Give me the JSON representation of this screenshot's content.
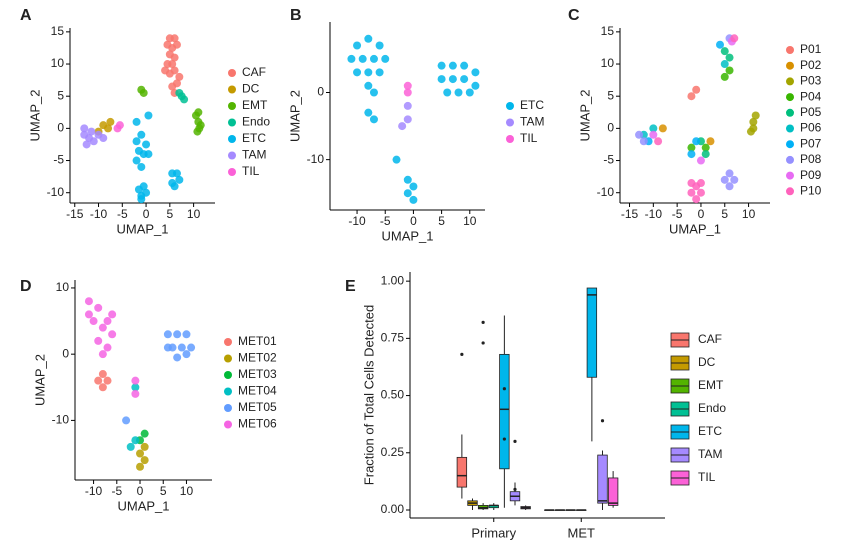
{
  "chart_data": [
    {
      "type": "scatter",
      "panel": "A",
      "xlabel": "UMAP_1",
      "ylabel": "UMAP_2",
      "xlim": [
        -16,
        14.5
      ],
      "ylim": [
        -11.6,
        15.6
      ],
      "xticks": [
        -15,
        -10,
        -5,
        0,
        5,
        10
      ],
      "yticks": [
        -10,
        -5,
        0,
        5,
        10,
        15
      ],
      "series": [
        {
          "name": "CAF",
          "color": "#F8766D",
          "x": [
            5,
            6,
            4.5,
            5.5,
            6.5,
            5,
            6,
            5.5,
            4.5,
            6,
            5,
            7,
            6.5,
            5.5,
            4,
            6
          ],
          "values": [
            14,
            14,
            13,
            12.5,
            13,
            11.5,
            11,
            10,
            10,
            9,
            8.5,
            8,
            7,
            6.5,
            9,
            5.5
          ]
        },
        {
          "name": "DC",
          "color": "#C49A00",
          "x": [
            -9,
            -8,
            -7.5,
            -10
          ],
          "values": [
            0.5,
            0,
            1,
            -0.5
          ]
        },
        {
          "name": "EMT",
          "color": "#53B400",
          "x": [
            -1,
            -0.5,
            10.5,
            11,
            11.5,
            10.8,
            11.2,
            11
          ],
          "values": [
            6,
            5.5,
            2,
            1,
            0.5,
            -0.5,
            0,
            2.5
          ]
        },
        {
          "name": "Endo",
          "color": "#00C094",
          "x": [
            7,
            7.5,
            8
          ],
          "values": [
            5.5,
            5,
            4.5
          ]
        },
        {
          "name": "ETC",
          "color": "#00B6EB",
          "x": [
            -1,
            -2,
            0,
            -1.5,
            -0.5,
            0.5,
            -2,
            -1,
            -0.5,
            -1.5,
            -1,
            0,
            -1,
            5.5,
            6.5,
            7,
            6,
            5.5,
            -2,
            0.5
          ],
          "values": [
            -1,
            -2,
            -2.5,
            -3.5,
            -4,
            -4,
            -5,
            -6,
            -9,
            -9.5,
            -10.5,
            -10,
            -11,
            -7,
            -7,
            -8,
            -9,
            -8.5,
            1,
            2
          ]
        },
        {
          "name": "TAM",
          "color": "#A58AFF",
          "x": [
            -13,
            -12,
            -11,
            -12.5,
            -10,
            -11.5,
            -13,
            -9
          ],
          "values": [
            -1,
            -1.5,
            -2,
            -2.5,
            -1,
            -0.5,
            0,
            -1.5
          ]
        },
        {
          "name": "TIL",
          "color": "#FB61D7",
          "x": [
            -6,
            -5.5
          ],
          "values": [
            0,
            0.5
          ]
        }
      ]
    },
    {
      "type": "scatter",
      "panel": "B",
      "xlabel": "UMAP_1",
      "ylabel": "UMAP_2",
      "xlim": [
        -14.8,
        12.7
      ],
      "ylim": [
        -17.5,
        10.5
      ],
      "xticks": [
        -10,
        -5,
        0,
        5,
        10
      ],
      "yticks": [
        -10,
        0
      ],
      "series": [
        {
          "name": "ETC",
          "color": "#00B6EB",
          "x": [
            -10,
            -8,
            -6,
            -11,
            -9,
            -7,
            -5,
            -10,
            -8,
            -6,
            -8,
            -7,
            -8,
            -7,
            5,
            7,
            9,
            11,
            5,
            7,
            9,
            11,
            6,
            8,
            10,
            -1,
            0,
            -1,
            0,
            -3
          ],
          "values": [
            7,
            8,
            7,
            5,
            5,
            5,
            5,
            3,
            3,
            3,
            1,
            0,
            -3,
            -4,
            4,
            4,
            4,
            3,
            2,
            2,
            2,
            1,
            0,
            0,
            0,
            -13,
            -14,
            -15,
            -16,
            -10
          ]
        },
        {
          "name": "TAM",
          "color": "#A58AFF",
          "x": [
            -1,
            -1,
            -2
          ],
          "values": [
            -2,
            -4,
            -5
          ]
        },
        {
          "name": "TIL",
          "color": "#FB61D7",
          "x": [
            -1,
            -1
          ],
          "values": [
            0,
            1
          ]
        }
      ]
    },
    {
      "type": "scatter",
      "panel": "C",
      "xlabel": "UMAP_1",
      "ylabel": "UMAP_2",
      "xlim": [
        -17,
        14.5
      ],
      "ylim": [
        -11.6,
        15.6
      ],
      "xticks": [
        -15,
        -10,
        -5,
        0,
        5,
        10
      ],
      "yticks": [
        -10,
        -5,
        0,
        5,
        10,
        15
      ],
      "series": [
        {
          "name": "P01",
          "color": "#F8766D",
          "x": [
            -1,
            -2
          ],
          "values": [
            6,
            5
          ]
        },
        {
          "name": "P02",
          "color": "#D89000",
          "x": [
            -8,
            2
          ],
          "values": [
            0,
            -2
          ]
        },
        {
          "name": "P03",
          "color": "#A3A500",
          "x": [
            11,
            11,
            10.5,
            11.5
          ],
          "values": [
            1,
            0,
            -0.5,
            2
          ]
        },
        {
          "name": "P04",
          "color": "#39B600",
          "x": [
            5,
            6,
            -2,
            1
          ],
          "values": [
            8,
            9,
            -3,
            -3
          ]
        },
        {
          "name": "P05",
          "color": "#00BF7D",
          "x": [
            5,
            6,
            0,
            1
          ],
          "values": [
            12,
            11,
            -2,
            -4
          ]
        },
        {
          "name": "P06",
          "color": "#00BFC4",
          "x": [
            -12,
            -10,
            5
          ],
          "values": [
            -1,
            0,
            10
          ]
        },
        {
          "name": "P07",
          "color": "#00B0F6",
          "x": [
            4,
            -11,
            -1,
            -2
          ],
          "values": [
            13,
            -2,
            -2,
            -4
          ]
        },
        {
          "name": "P08",
          "color": "#9590FF",
          "x": [
            6,
            -13,
            -12,
            6,
            7,
            6,
            5
          ],
          "values": [
            14,
            -1,
            -2,
            -7,
            -8,
            -9,
            -8
          ]
        },
        {
          "name": "P09",
          "color": "#E76BF3",
          "x": [
            -10,
            6.5,
            0
          ],
          "values": [
            -1,
            13.5,
            -5
          ]
        },
        {
          "name": "P10",
          "color": "#FF62BC",
          "x": [
            -1,
            -2,
            0,
            -1,
            -2,
            0,
            -9,
            7
          ],
          "values": [
            -9,
            -10,
            -10,
            -11,
            -8.5,
            -8.5,
            -2,
            14
          ]
        }
      ]
    },
    {
      "type": "scatter",
      "panel": "D",
      "xlabel": "UMAP_1",
      "ylabel": "UMAP_2",
      "xlim": [
        -14,
        15.5
      ],
      "ylim": [
        -19,
        11.2
      ],
      "xticks": [
        -10,
        -5,
        0,
        5,
        10
      ],
      "yticks": [
        -10,
        0,
        10
      ],
      "series": [
        {
          "name": "MET01",
          "color": "#F8766D",
          "x": [
            -8,
            -9,
            -8,
            -7
          ],
          "values": [
            -3,
            -4,
            -5,
            -4
          ]
        },
        {
          "name": "MET02",
          "color": "#B79F00",
          "x": [
            0,
            1,
            0,
            1
          ],
          "values": [
            -15,
            -16,
            -17,
            -14
          ]
        },
        {
          "name": "MET03",
          "color": "#00BA38",
          "x": [
            0,
            1
          ],
          "values": [
            -13,
            -12
          ]
        },
        {
          "name": "MET04",
          "color": "#00BFC4",
          "x": [
            -1,
            -2,
            -1
          ],
          "values": [
            -13,
            -14,
            -5
          ]
        },
        {
          "name": "MET05",
          "color": "#619CFF",
          "x": [
            6,
            8,
            10,
            7,
            9,
            11,
            8,
            10,
            6,
            -3
          ],
          "values": [
            3,
            3,
            3,
            1,
            1,
            1,
            -0.5,
            0,
            1,
            -10
          ]
        },
        {
          "name": "MET06",
          "color": "#F564E3",
          "x": [
            -11,
            -9,
            -7,
            -10,
            -8,
            -6,
            -9,
            -7,
            -8,
            -6,
            -11,
            -1,
            -1
          ],
          "values": [
            8,
            7,
            5,
            5,
            4,
            3,
            2,
            1,
            0,
            6,
            6,
            -4,
            -6
          ]
        }
      ]
    },
    {
      "type": "box",
      "panel": "E",
      "ylabel": "Fraction of Total Cells Detected",
      "categories": [
        "Primary",
        "MET"
      ],
      "ylim": [
        -0.035,
        1.04
      ],
      "yticks": [
        {
          "value": 0,
          "label": "0.00"
        },
        {
          "value": 0.25,
          "label": "0.25"
        },
        {
          "value": 0.5,
          "label": "0.50"
        },
        {
          "value": 0.75,
          "label": "0.75"
        },
        {
          "value": 1,
          "label": "1.00"
        }
      ],
      "series": [
        {
          "name": "CAF",
          "color": "#F8766D",
          "values": [
            [
              0.05,
              0.1,
              0.15,
              0.23,
              0.33
            ],
            [
              0,
              0,
              0,
              0,
              0
            ]
          ],
          "outliers": [
            [
              0.68
            ],
            []
          ]
        },
        {
          "name": "DC",
          "color": "#C49A00",
          "values": [
            [
              0,
              0.02,
              0.03,
              0.04,
              0.05
            ],
            [
              0,
              0,
              0,
              0,
              0
            ]
          ],
          "outliers": [
            [],
            []
          ]
        },
        {
          "name": "EMT",
          "color": "#53B400",
          "values": [
            [
              0,
              0.005,
              0.01,
              0.02,
              0.03
            ],
            [
              0,
              0,
              0,
              0,
              0
            ]
          ],
          "outliers": [
            [
              0.73,
              0.82
            ],
            []
          ]
        },
        {
          "name": "Endo",
          "color": "#00C094",
          "values": [
            [
              0,
              0.01,
              0.02,
              0.02,
              0.03
            ],
            [
              0,
              0,
              0,
              0,
              0
            ]
          ],
          "outliers": [
            [],
            []
          ]
        },
        {
          "name": "ETC",
          "color": "#00B6EB",
          "values": [
            [
              0.01,
              0.18,
              0.44,
              0.68,
              0.85
            ],
            [
              0.3,
              0.58,
              0.94,
              0.97,
              0.97
            ]
          ],
          "outliers": [
            [
              0.53,
              0.31
            ],
            []
          ]
        },
        {
          "name": "TAM",
          "color": "#A58AFF",
          "values": [
            [
              0.02,
              0.04,
              0.06,
              0.08,
              0.12
            ],
            [
              0,
              0.03,
              0.04,
              0.24,
              0.26
            ]
          ],
          "outliers": [
            [
              0.3,
              0.09
            ],
            [
              0.39
            ]
          ]
        },
        {
          "name": "TIL",
          "color": "#FB61D7",
          "values": [
            [
              0,
              0.005,
              0.01,
              0.015,
              0.02
            ],
            [
              0.01,
              0.02,
              0.03,
              0.14,
              0.17
            ]
          ],
          "outliers": [
            [],
            []
          ]
        }
      ]
    }
  ]
}
